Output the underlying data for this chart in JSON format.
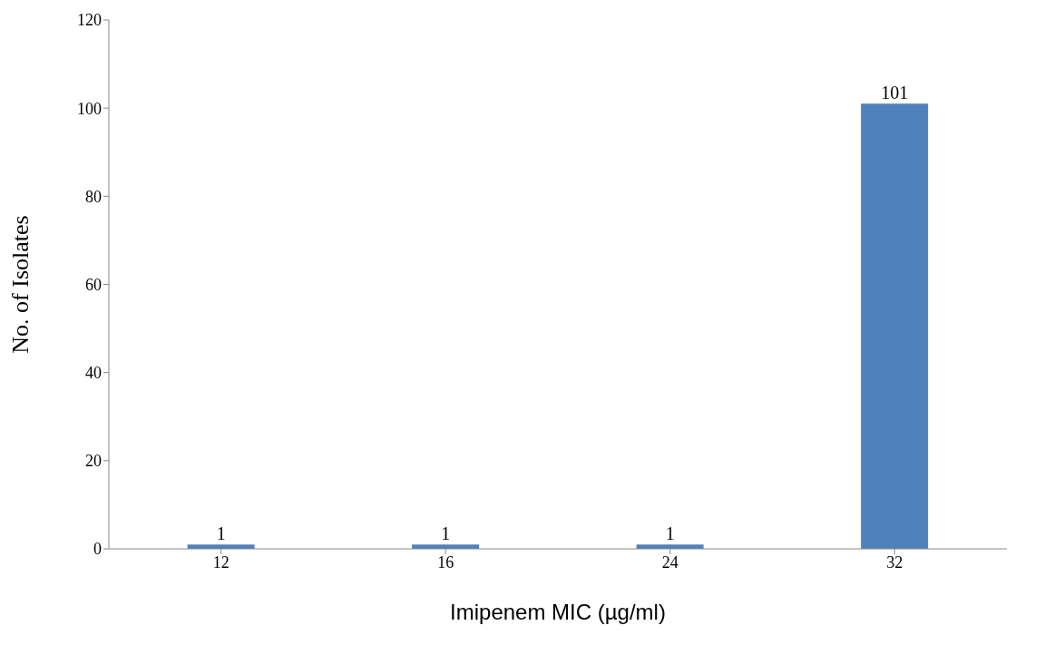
{
  "chart_data": {
    "type": "bar",
    "xlabel": "Imipenem MIC (µg/ml)",
    "ylabel": "No. of Isolates",
    "categories": [
      "12",
      "16",
      "24",
      "32"
    ],
    "values": [
      1,
      1,
      1,
      101
    ],
    "color": "#4f81bd",
    "ylim": [
      0,
      120
    ],
    "yticks": [
      0,
      20,
      40,
      60,
      80,
      100,
      120
    ],
    "data_labels": true
  }
}
